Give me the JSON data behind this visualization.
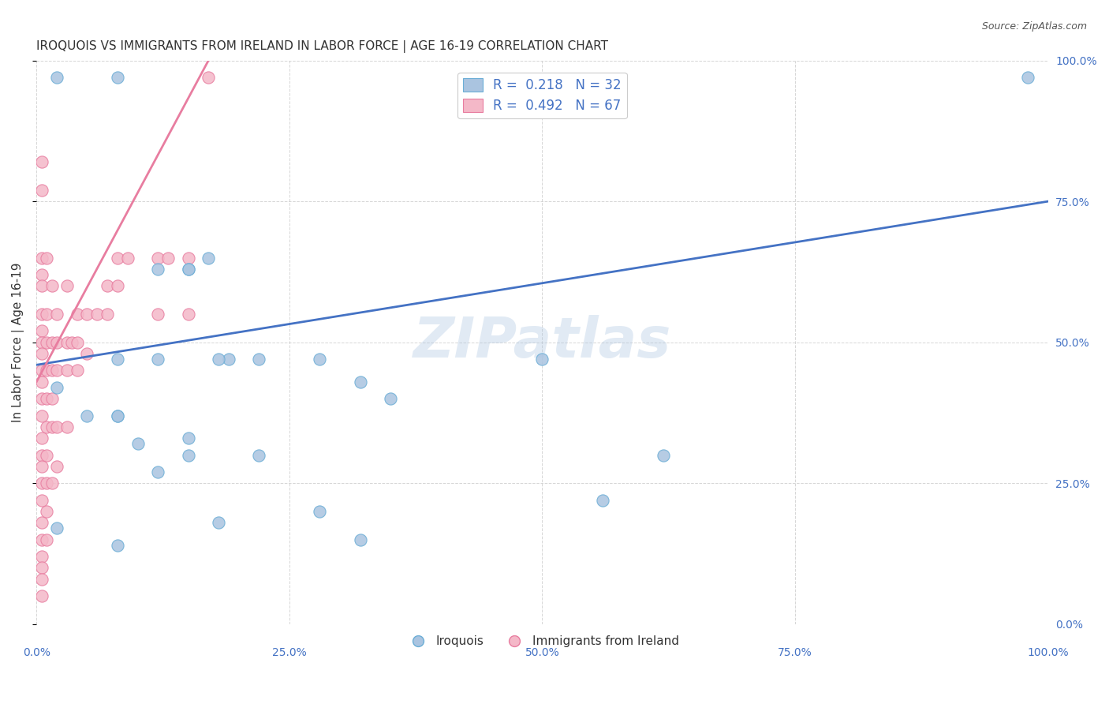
{
  "title": "IROQUOIS VS IMMIGRANTS FROM IRELAND IN LABOR FORCE | AGE 16-19 CORRELATION CHART",
  "source": "Source: ZipAtlas.com",
  "xlabel": "",
  "ylabel": "In Labor Force | Age 16-19",
  "xlim": [
    0.0,
    1.0
  ],
  "ylim": [
    0.0,
    1.0
  ],
  "xtick_labels": [
    "0.0%",
    "25.0%",
    "50.0%",
    "75.0%",
    "100.0%"
  ],
  "xtick_vals": [
    0.0,
    0.25,
    0.5,
    0.75,
    1.0
  ],
  "ytick_labels": [
    "0.0%",
    "25.0%",
    "50.0%",
    "75.0%",
    "100.0%"
  ],
  "ytick_vals": [
    0.0,
    0.25,
    0.5,
    0.75,
    1.0
  ],
  "right_ytick_labels": [
    "100.0%",
    "75.0%",
    "50.0%",
    "25.0%",
    "0.0%"
  ],
  "blue_color": "#aac4e0",
  "blue_edge": "#6baed6",
  "pink_color": "#f4b8c8",
  "pink_edge": "#e87da0",
  "blue_line_color": "#4472c4",
  "pink_line_color": "#e87da0",
  "R_blue": 0.218,
  "N_blue": 32,
  "R_pink": 0.492,
  "N_pink": 67,
  "iroquois_x": [
    0.02,
    0.08,
    0.12,
    0.15,
    0.15,
    0.17,
    0.19,
    0.22,
    0.08,
    0.12,
    0.18,
    0.08,
    0.15,
    0.28,
    0.32,
    0.35,
    0.5,
    0.56,
    0.62,
    0.02,
    0.05,
    0.08,
    0.1,
    0.12,
    0.15,
    0.18,
    0.22,
    0.28,
    0.32,
    0.98,
    0.02,
    0.08
  ],
  "iroquois_y": [
    0.97,
    0.97,
    0.63,
    0.63,
    0.63,
    0.65,
    0.47,
    0.47,
    0.47,
    0.47,
    0.47,
    0.37,
    0.33,
    0.47,
    0.43,
    0.4,
    0.47,
    0.22,
    0.3,
    0.42,
    0.37,
    0.37,
    0.32,
    0.27,
    0.3,
    0.18,
    0.3,
    0.2,
    0.15,
    0.97,
    0.17,
    0.14
  ],
  "ireland_x": [
    0.005,
    0.005,
    0.005,
    0.005,
    0.005,
    0.005,
    0.005,
    0.005,
    0.005,
    0.005,
    0.005,
    0.005,
    0.005,
    0.005,
    0.005,
    0.005,
    0.005,
    0.005,
    0.005,
    0.005,
    0.005,
    0.005,
    0.005,
    0.005,
    0.01,
    0.01,
    0.01,
    0.01,
    0.01,
    0.01,
    0.01,
    0.01,
    0.01,
    0.01,
    0.015,
    0.015,
    0.015,
    0.015,
    0.015,
    0.015,
    0.02,
    0.02,
    0.02,
    0.02,
    0.02,
    0.03,
    0.03,
    0.03,
    0.03,
    0.035,
    0.04,
    0.04,
    0.04,
    0.05,
    0.05,
    0.06,
    0.07,
    0.07,
    0.08,
    0.08,
    0.09,
    0.12,
    0.12,
    0.13,
    0.15,
    0.15,
    0.17
  ],
  "ireland_y": [
    0.82,
    0.77,
    0.65,
    0.62,
    0.6,
    0.55,
    0.52,
    0.5,
    0.48,
    0.45,
    0.43,
    0.4,
    0.37,
    0.33,
    0.3,
    0.28,
    0.25,
    0.22,
    0.18,
    0.15,
    0.12,
    0.1,
    0.08,
    0.05,
    0.65,
    0.55,
    0.5,
    0.45,
    0.4,
    0.35,
    0.3,
    0.25,
    0.2,
    0.15,
    0.6,
    0.5,
    0.45,
    0.4,
    0.35,
    0.25,
    0.55,
    0.5,
    0.45,
    0.35,
    0.28,
    0.6,
    0.5,
    0.45,
    0.35,
    0.5,
    0.55,
    0.5,
    0.45,
    0.55,
    0.48,
    0.55,
    0.6,
    0.55,
    0.65,
    0.6,
    0.65,
    0.65,
    0.55,
    0.65,
    0.65,
    0.55,
    0.97
  ],
  "watermark": "ZIPatlas",
  "background_color": "#ffffff",
  "grid_color": "#cccccc",
  "title_fontsize": 11,
  "axis_label_fontsize": 11,
  "tick_fontsize": 10
}
